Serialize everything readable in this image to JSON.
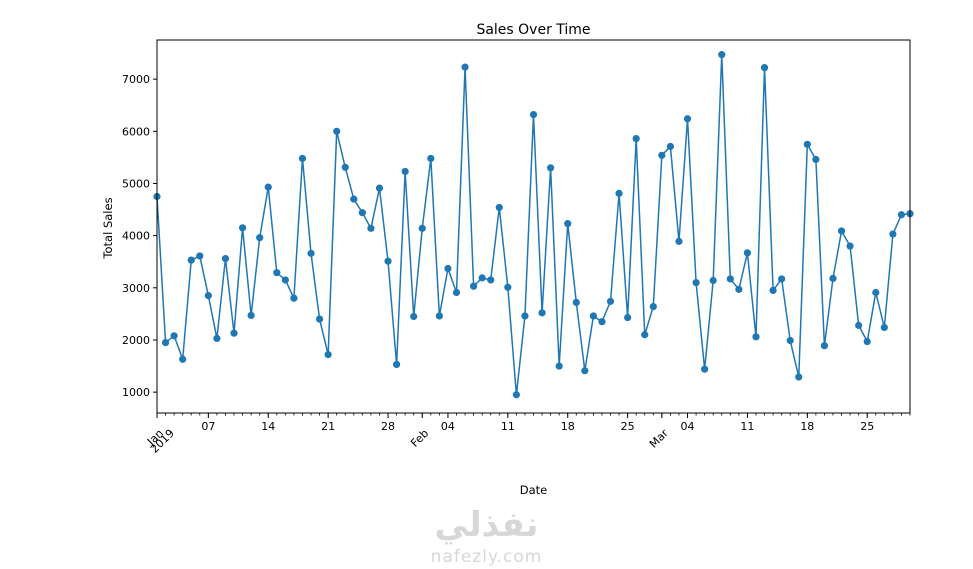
{
  "chart_data": {
    "type": "line",
    "title": "Sales Over Time",
    "xlabel": "Date",
    "ylabel": "Total Sales",
    "x_start": "2019-01-01",
    "x_end": "2019-03-30",
    "ylim": [
      600,
      7750
    ],
    "yticks": [
      1000,
      2000,
      3000,
      4000,
      5000,
      6000,
      7000
    ],
    "xticks_major": [
      {
        "date": "2019-01-07",
        "label": "07"
      },
      {
        "date": "2019-01-14",
        "label": "14"
      },
      {
        "date": "2019-01-21",
        "label": "21"
      },
      {
        "date": "2019-01-28",
        "label": "28"
      },
      {
        "date": "2019-02-04",
        "label": "04"
      },
      {
        "date": "2019-02-11",
        "label": "11"
      },
      {
        "date": "2019-02-18",
        "label": "18"
      },
      {
        "date": "2019-02-25",
        "label": "25"
      },
      {
        "date": "2019-03-04",
        "label": "04"
      },
      {
        "date": "2019-03-11",
        "label": "11"
      },
      {
        "date": "2019-03-18",
        "label": "18"
      },
      {
        "date": "2019-03-25",
        "label": "25"
      }
    ],
    "month_labels": [
      {
        "date": "2019-01-01",
        "label": "Jan\n2019"
      },
      {
        "date": "2019-02-01",
        "label": "Feb"
      },
      {
        "date": "2019-03-01",
        "label": "Mar"
      }
    ],
    "grid": false,
    "marker": "circle",
    "color": "#1f77b4",
    "series": [
      {
        "dates": [
          "2019-01-01",
          "2019-01-02",
          "2019-01-03",
          "2019-01-04",
          "2019-01-05",
          "2019-01-06",
          "2019-01-07",
          "2019-01-08",
          "2019-01-09",
          "2019-01-10",
          "2019-01-11",
          "2019-01-12",
          "2019-01-13",
          "2019-01-14",
          "2019-01-15",
          "2019-01-16",
          "2019-01-17",
          "2019-01-18",
          "2019-01-19",
          "2019-01-20",
          "2019-01-21",
          "2019-01-22",
          "2019-01-23",
          "2019-01-24",
          "2019-01-25",
          "2019-01-26",
          "2019-01-27",
          "2019-01-28",
          "2019-01-29",
          "2019-01-30",
          "2019-01-31",
          "2019-02-01",
          "2019-02-02",
          "2019-02-03",
          "2019-02-04",
          "2019-02-05",
          "2019-02-06",
          "2019-02-07",
          "2019-02-08",
          "2019-02-09",
          "2019-02-10",
          "2019-02-11",
          "2019-02-12",
          "2019-02-13",
          "2019-02-14",
          "2019-02-15",
          "2019-02-16",
          "2019-02-17",
          "2019-02-18",
          "2019-02-19",
          "2019-02-20",
          "2019-02-21",
          "2019-02-22",
          "2019-02-23",
          "2019-02-24",
          "2019-02-25",
          "2019-02-26",
          "2019-02-27",
          "2019-02-28",
          "2019-03-01",
          "2019-03-02",
          "2019-03-03",
          "2019-03-04",
          "2019-03-05",
          "2019-03-06",
          "2019-03-07",
          "2019-03-08",
          "2019-03-09",
          "2019-03-10",
          "2019-03-11",
          "2019-03-12",
          "2019-03-13",
          "2019-03-14",
          "2019-03-15",
          "2019-03-16",
          "2019-03-17",
          "2019-03-18",
          "2019-03-19",
          "2019-03-20",
          "2019-03-21",
          "2019-03-22",
          "2019-03-23",
          "2019-03-24",
          "2019-03-25",
          "2019-03-26",
          "2019-03-27",
          "2019-03-28",
          "2019-03-29",
          "2019-03-30"
        ],
        "values": [
          4750,
          1950,
          2080,
          1630,
          3530,
          3610,
          2850,
          2030,
          3560,
          2130,
          4150,
          2470,
          3960,
          4930,
          3290,
          3150,
          2800,
          5480,
          3660,
          2400,
          1720,
          6000,
          5310,
          4700,
          4440,
          4140,
          4910,
          3510,
          1530,
          5230,
          2450,
          4140,
          5480,
          2460,
          3370,
          2910,
          7230,
          3030,
          3190,
          3150,
          4540,
          3010,
          950,
          2460,
          6320,
          2520,
          5300,
          1500,
          4230,
          2720,
          1410,
          2460,
          2350,
          2740,
          4810,
          2430,
          5860,
          2100,
          2640,
          5540,
          5710,
          3890,
          6240,
          3100,
          1440,
          3140,
          7470,
          3170,
          2970,
          3670,
          2060,
          7220,
          2950,
          3170,
          1990,
          1290,
          5750,
          5460,
          1890,
          3180,
          4090,
          3800,
          2280,
          1970,
          2910,
          2240,
          4030,
          4400,
          4420
        ]
      }
    ]
  },
  "watermark": {
    "arabic": "نفذلي",
    "latin": "nafezly.com"
  }
}
